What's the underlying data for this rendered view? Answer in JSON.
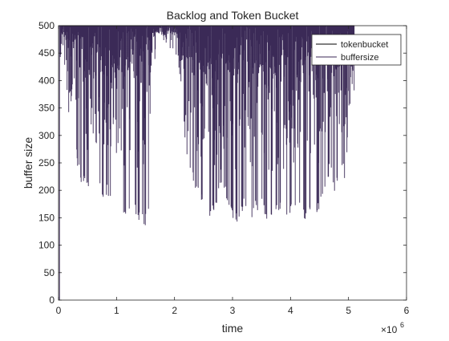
{
  "chart_data": {
    "type": "line",
    "title": "Backlog and Token Bucket",
    "xlabel": "time",
    "ylabel": "buffer size",
    "x_exponent_label": "×10",
    "x_exponent_power": "6",
    "xlim": [
      0,
      6
    ],
    "ylim": [
      0,
      500
    ],
    "x_ticks": [
      "0",
      "1",
      "2",
      "3",
      "4",
      "5",
      "6"
    ],
    "y_ticks": [
      "0",
      "50",
      "100",
      "150",
      "200",
      "250",
      "300",
      "350",
      "400",
      "450",
      "500"
    ],
    "grid": false,
    "legend_position": "top-right",
    "series": [
      {
        "name": "tokenbucket",
        "color": "#000000",
        "x_range": [
          0,
          5.1
        ],
        "value": 500
      },
      {
        "name": "buffersize",
        "color": "#3b2a57",
        "x_range": [
          0.03,
          5.1
        ],
        "envelope_minimum": [
          {
            "x": 0.03,
            "y": 420
          },
          {
            "x": 0.12,
            "y": 415
          },
          {
            "x": 0.2,
            "y": 300
          },
          {
            "x": 0.28,
            "y": 280
          },
          {
            "x": 0.35,
            "y": 225
          },
          {
            "x": 0.45,
            "y": 200
          },
          {
            "x": 0.55,
            "y": 185
          },
          {
            "x": 0.62,
            "y": 175
          },
          {
            "x": 0.7,
            "y": 195
          },
          {
            "x": 0.8,
            "y": 185
          },
          {
            "x": 0.9,
            "y": 190
          },
          {
            "x": 1.0,
            "y": 175
          },
          {
            "x": 1.05,
            "y": 160
          },
          {
            "x": 1.15,
            "y": 155
          },
          {
            "x": 1.25,
            "y": 150
          },
          {
            "x": 1.35,
            "y": 150
          },
          {
            "x": 1.42,
            "y": 140
          },
          {
            "x": 1.5,
            "y": 135
          },
          {
            "x": 1.55,
            "y": 160
          },
          {
            "x": 1.6,
            "y": 300
          },
          {
            "x": 1.65,
            "y": 420
          },
          {
            "x": 1.7,
            "y": 480
          },
          {
            "x": 1.8,
            "y": 475
          },
          {
            "x": 1.9,
            "y": 455
          },
          {
            "x": 2.0,
            "y": 440
          },
          {
            "x": 2.1,
            "y": 400
          },
          {
            "x": 2.15,
            "y": 350
          },
          {
            "x": 2.2,
            "y": 250
          },
          {
            "x": 2.3,
            "y": 215
          },
          {
            "x": 2.4,
            "y": 190
          },
          {
            "x": 2.5,
            "y": 175
          },
          {
            "x": 2.6,
            "y": 145
          },
          {
            "x": 2.7,
            "y": 160
          },
          {
            "x": 2.8,
            "y": 215
          },
          {
            "x": 2.9,
            "y": 175
          },
          {
            "x": 3.0,
            "y": 150
          },
          {
            "x": 3.1,
            "y": 140
          },
          {
            "x": 3.2,
            "y": 165
          },
          {
            "x": 3.3,
            "y": 140
          },
          {
            "x": 3.4,
            "y": 160
          },
          {
            "x": 3.5,
            "y": 165
          },
          {
            "x": 3.6,
            "y": 140
          },
          {
            "x": 3.7,
            "y": 145
          },
          {
            "x": 3.8,
            "y": 160
          },
          {
            "x": 3.9,
            "y": 140
          },
          {
            "x": 4.0,
            "y": 150
          },
          {
            "x": 4.1,
            "y": 165
          },
          {
            "x": 4.2,
            "y": 150
          },
          {
            "x": 4.3,
            "y": 140
          },
          {
            "x": 4.4,
            "y": 155
          },
          {
            "x": 4.5,
            "y": 155
          },
          {
            "x": 4.6,
            "y": 195
          },
          {
            "x": 4.7,
            "y": 240
          },
          {
            "x": 4.75,
            "y": 175
          },
          {
            "x": 4.85,
            "y": 250
          },
          {
            "x": 4.95,
            "y": 215
          },
          {
            "x": 5.0,
            "y": 330
          },
          {
            "x": 5.05,
            "y": 370
          },
          {
            "x": 5.1,
            "y": 380
          }
        ]
      }
    ]
  }
}
